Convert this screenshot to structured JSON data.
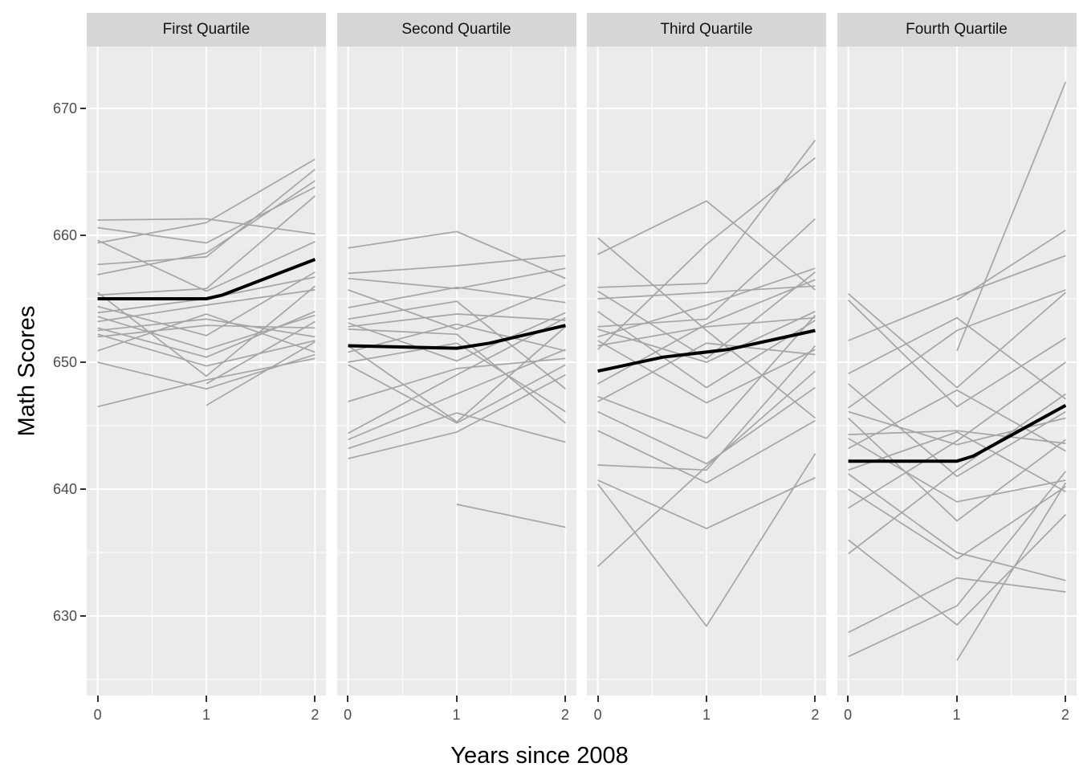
{
  "axes": {
    "x_title": "Years since 2008",
    "y_title": "Math Scores",
    "x_tick_labels": [
      "0",
      "1",
      "2"
    ],
    "y_tick_labels": [
      "630",
      "640",
      "650",
      "660",
      "670"
    ]
  },
  "colors": {
    "figure_background": "#FFFFFF",
    "panel_background": "#EBEBEB",
    "strip_background": "#D6D6D6",
    "gridline": "#FFFFFF",
    "individual_line": "#A5A5A5",
    "mean_line": "#000000",
    "tick_label_text": "#4D4D4D",
    "axis_title_text": "#000000",
    "strip_text": "#111111",
    "tick_mark": "#333333"
  },
  "chart_data": {
    "type": "line",
    "title": "",
    "xlabel": "Years since 2008",
    "ylabel": "Math Scores",
    "x_ticks": [
      0,
      1,
      2
    ],
    "y_ticks": [
      630,
      640,
      650,
      660,
      670
    ],
    "x_minor_gridlines": [
      0.5,
      1.5
    ],
    "y_minor_gridlines": [
      625,
      635,
      645,
      655,
      665
    ],
    "xlim": [
      -0.1,
      2.1
    ],
    "ylim": [
      623.7,
      674.9
    ],
    "grid": "on",
    "legend": "none",
    "description": "Spaghetti plot of individual school math score trajectories (gray) with bold black mean trajectory, faceted by quartile.",
    "facets": [
      {
        "label": "First Quartile",
        "mean_series": {
          "x": [
            0,
            1,
            1.15,
            2
          ],
          "y": [
            655.0,
            655.0,
            655.3,
            658.1
          ]
        },
        "individual_series": [
          {
            "x": [
              0,
              1,
              2
            ],
            "y": [
              661.2,
              661.3,
              660.1
            ]
          },
          {
            "x": [
              0,
              1,
              2
            ],
            "y": [
              660.6,
              659.4,
              663.8
            ]
          },
          {
            "x": [
              0,
              1,
              2
            ],
            "y": [
              659.6,
              655.6,
              659.5
            ]
          },
          {
            "x": [
              0,
              1,
              2
            ],
            "y": [
              659.4,
              661.0,
              666.0
            ]
          },
          {
            "x": [
              0,
              1,
              2
            ],
            "y": [
              657.7,
              658.3,
              665.2
            ]
          },
          {
            "x": [
              0,
              1,
              2
            ],
            "y": [
              656.9,
              658.6,
              664.3
            ]
          },
          {
            "x": [
              0,
              1,
              2
            ],
            "y": [
              655.5,
              648.9,
              656.0
            ]
          },
          {
            "x": [
              0,
              1,
              2
            ],
            "y": [
              655.3,
              655.8,
              663.1
            ]
          },
          {
            "x": [
              0,
              1,
              2
            ],
            "y": [
              654.4,
              652.1,
              657.1
            ]
          },
          {
            "x": [
              0,
              1,
              2
            ],
            "y": [
              653.9,
              655.0,
              656.7
            ]
          },
          {
            "x": [
              0,
              1,
              2
            ],
            "y": [
              653.6,
              651.0,
              653.7
            ]
          },
          {
            "x": [
              0,
              1,
              2
            ],
            "y": [
              653.2,
              654.5,
              655.7
            ]
          },
          {
            "x": [
              0,
              1,
              2
            ],
            "y": [
              652.7,
              650.4,
              654.0
            ]
          },
          {
            "x": [
              0,
              1,
              2
            ],
            "y": [
              652.5,
              653.4,
              652.0
            ]
          },
          {
            "x": [
              0,
              1,
              2
            ],
            "y": [
              652.2,
              649.7,
              651.7
            ]
          },
          {
            "x": [
              0,
              1,
              2
            ],
            "y": [
              652.0,
              652.9,
              652.7
            ]
          },
          {
            "x": [
              0,
              1,
              2
            ],
            "y": [
              650.9,
              653.8,
              650.8
            ]
          },
          {
            "x": [
              0,
              1,
              2
            ],
            "y": [
              650.0,
              647.9,
              650.6
            ]
          },
          {
            "x": [
              0,
              1,
              2
            ],
            "y": [
              646.5,
              648.6,
              650.3
            ]
          },
          {
            "x": [
              1,
              2
            ],
            "y": [
              648.3,
              653.2
            ]
          },
          {
            "x": [
              1,
              2
            ],
            "y": [
              646.6,
              651.6
            ]
          }
        ]
      },
      {
        "label": "Second Quartile",
        "mean_series": {
          "x": [
            0,
            1,
            1.3,
            2
          ],
          "y": [
            651.3,
            651.1,
            651.5,
            652.9
          ]
        },
        "individual_series": [
          {
            "x": [
              0,
              1,
              2
            ],
            "y": [
              659.0,
              660.3,
              656.6
            ]
          },
          {
            "x": [
              0,
              1,
              2
            ],
            "y": [
              657.0,
              657.6,
              658.4
            ]
          },
          {
            "x": [
              0,
              1,
              2
            ],
            "y": [
              656.6,
              655.8,
              657.4
            ]
          },
          {
            "x": [
              0,
              1,
              2
            ],
            "y": [
              655.7,
              652.6,
              656.1
            ]
          },
          {
            "x": [
              0,
              1,
              2
            ],
            "y": [
              654.3,
              655.9,
              654.7
            ]
          },
          {
            "x": [
              0,
              1,
              2
            ],
            "y": [
              653.4,
              654.8,
              647.9
            ]
          },
          {
            "x": [
              0,
              1,
              2
            ],
            "y": [
              653.1,
              650.1,
              653.9
            ]
          },
          {
            "x": [
              0,
              1,
              2
            ],
            "y": [
              652.8,
              653.8,
              653.3
            ]
          },
          {
            "x": [
              0,
              1,
              2
            ],
            "y": [
              652.6,
              652.2,
              645.2
            ]
          },
          {
            "x": [
              0,
              1,
              2
            ],
            "y": [
              651.3,
              645.3,
              652.8
            ]
          },
          {
            "x": [
              0,
              1,
              2
            ],
            "y": [
              650.8,
              653.0,
              650.9
            ]
          },
          {
            "x": [
              0,
              1,
              2
            ],
            "y": [
              650.0,
              651.5,
              646.1
            ]
          },
          {
            "x": [
              0,
              1,
              2
            ],
            "y": [
              649.8,
              645.2,
              649.8
            ]
          },
          {
            "x": [
              0,
              1,
              2
            ],
            "y": [
              646.9,
              649.5,
              650.3
            ]
          },
          {
            "x": [
              0,
              1,
              2
            ],
            "y": [
              644.4,
              649.0,
              653.5
            ]
          },
          {
            "x": [
              0,
              1,
              2
            ],
            "y": [
              643.9,
              647.5,
              651.0
            ]
          },
          {
            "x": [
              0,
              1,
              2
            ],
            "y": [
              643.2,
              646.0,
              643.7
            ]
          },
          {
            "x": [
              0,
              1,
              2
            ],
            "y": [
              642.4,
              644.5,
              649.0
            ]
          },
          {
            "x": [
              1,
              2
            ],
            "y": [
              638.8,
              637.0
            ]
          }
        ]
      },
      {
        "label": "Third Quartile",
        "mean_series": {
          "x": [
            0,
            0.6,
            1.2,
            2
          ],
          "y": [
            649.3,
            650.4,
            651.0,
            652.5
          ]
        },
        "individual_series": [
          {
            "x": [
              0,
              1,
              2
            ],
            "y": [
              659.8,
              652.5,
              645.6
            ]
          },
          {
            "x": [
              0,
              1,
              2
            ],
            "y": [
              658.5,
              662.7,
              655.7
            ]
          },
          {
            "x": [
              0,
              1,
              2
            ],
            "y": [
              655.9,
              656.2,
              667.5
            ]
          },
          {
            "x": [
              0,
              1,
              2
            ],
            "y": [
              655.6,
              650.3,
              657.1
            ]
          },
          {
            "x": [
              0,
              1,
              2
            ],
            "y": [
              655.0,
              655.5,
              656.0
            ]
          },
          {
            "x": [
              0,
              1,
              2
            ],
            "y": [
              654.0,
              648.0,
              653.3
            ]
          },
          {
            "x": [
              0,
              1,
              2
            ],
            "y": [
              652.8,
              653.4,
              661.3
            ]
          },
          {
            "x": [
              0,
              1,
              2
            ],
            "y": [
              652.6,
              650.0,
              654.0
            ]
          },
          {
            "x": [
              0,
              1,
              2
            ],
            "y": [
              652.0,
              654.5,
              657.4
            ]
          },
          {
            "x": [
              0,
              1,
              2
            ],
            "y": [
              651.7,
              646.8,
              651.0
            ]
          },
          {
            "x": [
              0,
              1,
              2
            ],
            "y": [
              651.3,
              652.8,
              653.5
            ]
          },
          {
            "x": [
              0,
              1,
              2
            ],
            "y": [
              651.0,
              659.3,
              666.1
            ]
          },
          {
            "x": [
              0,
              1,
              2
            ],
            "y": [
              648.3,
              653.0,
              656.5
            ]
          },
          {
            "x": [
              0,
              1,
              2
            ],
            "y": [
              647.3,
              644.0,
              653.7
            ]
          },
          {
            "x": [
              0,
              1,
              2
            ],
            "y": [
              646.9,
              651.5,
              650.6
            ]
          },
          {
            "x": [
              0,
              1,
              2
            ],
            "y": [
              646.1,
              642.0,
              648.0
            ]
          },
          {
            "x": [
              0,
              1,
              2
            ],
            "y": [
              644.6,
              640.5,
              645.4
            ]
          },
          {
            "x": [
              0,
              1,
              2
            ],
            "y": [
              641.9,
              641.5,
              651.3
            ]
          },
          {
            "x": [
              0,
              1,
              2
            ],
            "y": [
              640.7,
              636.9,
              640.9
            ]
          },
          {
            "x": [
              0,
              1,
              2
            ],
            "y": [
              640.4,
              629.2,
              642.8
            ]
          },
          {
            "x": [
              0,
              1,
              2
            ],
            "y": [
              633.9,
              641.8,
              649.3
            ]
          }
        ]
      },
      {
        "label": "Fourth Quartile",
        "mean_series": {
          "x": [
            0,
            1,
            1.15,
            2
          ],
          "y": [
            642.2,
            642.2,
            642.6,
            646.6
          ]
        },
        "individual_series": [
          {
            "x": [
              0,
              1,
              2
            ],
            "y": [
              655.4,
              648.0,
              655.5
            ]
          },
          {
            "x": [
              0,
              1,
              2
            ],
            "y": [
              654.9,
              646.5,
              651.9
            ]
          },
          {
            "x": [
              0,
              1,
              2
            ],
            "y": [
              651.7,
              655.2,
              658.4
            ]
          },
          {
            "x": [
              0,
              1,
              2
            ],
            "y": [
              649.1,
              653.5,
              647.1
            ]
          },
          {
            "x": [
              0,
              1,
              2
            ],
            "y": [
              648.3,
              641.0,
              646.1
            ]
          },
          {
            "x": [
              0,
              1,
              2
            ],
            "y": [
              646.4,
              652.5,
              655.7
            ]
          },
          {
            "x": [
              0,
              1,
              2
            ],
            "y": [
              646.1,
              643.5,
              645.6
            ]
          },
          {
            "x": [
              0,
              1,
              2
            ],
            "y": [
              645.6,
              637.5,
              643.9
            ]
          },
          {
            "x": [
              0,
              1,
              2
            ],
            "y": [
              644.3,
              644.6,
              643.6
            ]
          },
          {
            "x": [
              0,
              1,
              2
            ],
            "y": [
              644.0,
              639.0,
              640.7
            ]
          },
          {
            "x": [
              0,
              1,
              2
            ],
            "y": [
              643.2,
              647.8,
              643.0
            ]
          },
          {
            "x": [
              0,
              1,
              2
            ],
            "y": [
              641.5,
              644.5,
              639.8
            ]
          },
          {
            "x": [
              0,
              1,
              2
            ],
            "y": [
              641.2,
              635.0,
              632.8
            ]
          },
          {
            "x": [
              0,
              1,
              2
            ],
            "y": [
              640.0,
              634.5,
              640.2
            ]
          },
          {
            "x": [
              0,
              1,
              2
            ],
            "y": [
              638.5,
              643.8,
              650.0
            ]
          },
          {
            "x": [
              0,
              1,
              2
            ],
            "y": [
              636.0,
              629.3,
              638.0
            ]
          },
          {
            "x": [
              0,
              1,
              2
            ],
            "y": [
              634.9,
              641.5,
              647.5
            ]
          },
          {
            "x": [
              0,
              1,
              2
            ],
            "y": [
              628.7,
              633.0,
              631.9
            ]
          },
          {
            "x": [
              0,
              1,
              2
            ],
            "y": [
              626.8,
              630.8,
              641.4
            ]
          },
          {
            "x": [
              1,
              2
            ],
            "y": [
              650.9,
              672.1
            ]
          },
          {
            "x": [
              1,
              2
            ],
            "y": [
              654.9,
              660.4
            ]
          },
          {
            "x": [
              1,
              2
            ],
            "y": [
              626.5,
              640.5
            ]
          }
        ]
      }
    ]
  }
}
